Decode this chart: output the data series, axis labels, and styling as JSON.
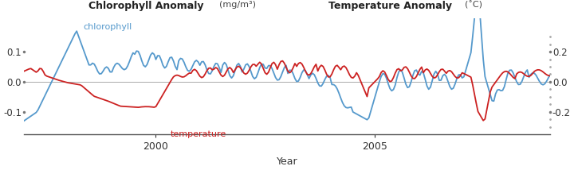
{
  "title_left": "Chlorophyll Anomaly",
  "title_left_units": "(mg/m³)",
  "title_right": "Temperature Anomaly",
  "title_right_units": "(˚C)",
  "xlabel": "Year",
  "label_chlorophyll": "chlorophyll",
  "label_temperature": "temperature",
  "color_chlorophyll": "#5599cc",
  "color_temperature": "#cc2222",
  "ylim_left": [
    -0.175,
    0.21
  ],
  "ylim_right": [
    -0.35,
    0.42
  ],
  "yticks_left": [
    -0.1,
    0,
    0.1
  ],
  "yticks_right": [
    -0.2,
    0,
    0.2
  ],
  "xmin": 1997.0,
  "xmax": 2009.0,
  "xticks": [
    2000,
    2005
  ],
  "background_color": "#ffffff",
  "linewidth": 1.3
}
